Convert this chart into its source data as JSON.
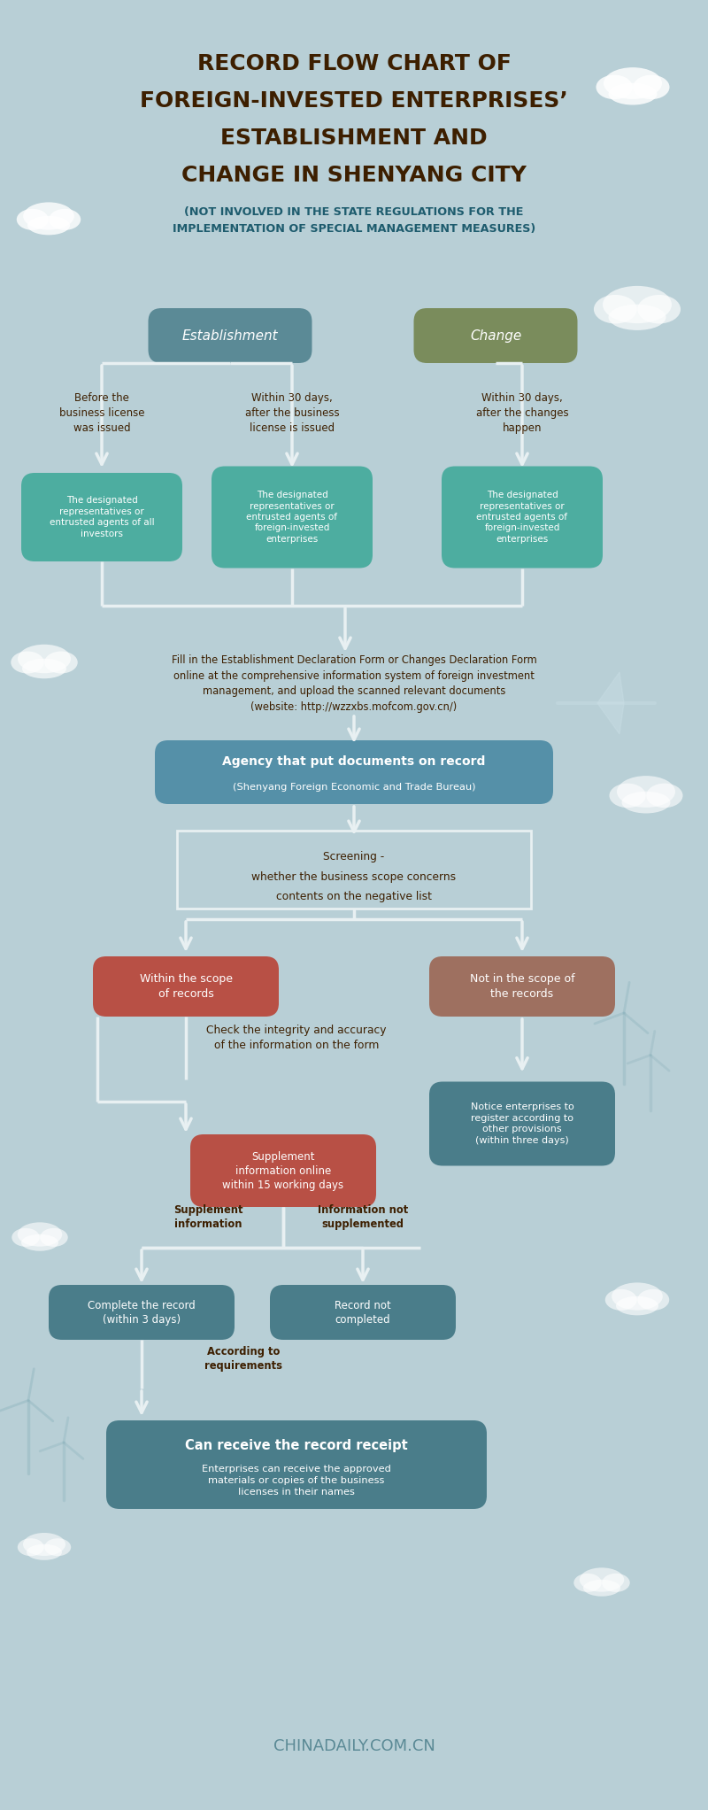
{
  "bg_color": "#b8cfd6",
  "title_line1": "RECORD FLOW CHART OF",
  "title_line2": "FOREIGN-INVESTED ENTERPRISES’",
  "title_line3": "ESTABLISHMENT AND",
  "title_line4": "CHANGE IN SHENYANG CITY",
  "subtitle": "(NOT INVOLVED IN THE STATE REGULATIONS FOR THE\nIMPLEMENTATION OF SPECIAL MANAGEMENT MEASURES)",
  "title_color": "#3d1f00",
  "subtitle_color": "#1e5c6e",
  "establishment_color": "#5b8a96",
  "change_color": "#7a8c5c",
  "teal_box_color": "#4dada0",
  "blue_box_color": "#5590a8",
  "red_box_color": "#b85045",
  "brown_box_color": "#9e7060",
  "dark_teal_box_color": "#4a7d8a",
  "arrow_color": "#e8f0f2",
  "text_white": "#ffffff",
  "text_dark": "#3d1f00",
  "text_teal": "#1e5c6e",
  "footer_text": "CHINADAILY.COM.CN",
  "footer_color": "#5b8a96",
  "line_color": "#e8f0f2"
}
